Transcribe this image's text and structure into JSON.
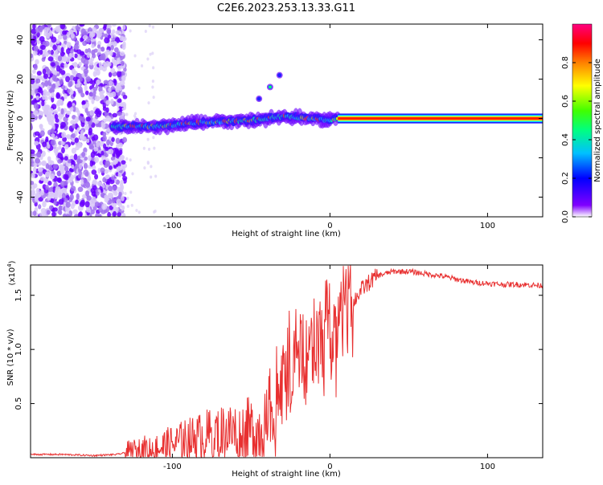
{
  "page_title": "C2E6.2023.253.13.33.G11",
  "chart_data": [
    {
      "id": "spectrogram",
      "type": "heatmap",
      "xlabel": "Height of straight line (km)",
      "ylabel": "Frequency (Hz)",
      "xlim": [
        -190,
        135
      ],
      "ylim": [
        -50,
        48
      ],
      "xticks": [
        -100,
        0,
        100
      ],
      "xtick_labels": [
        "-100",
        "0",
        "100"
      ],
      "yticks": [
        -40,
        -20,
        0,
        20,
        40
      ],
      "ytick_labels": [
        "-40",
        "-20",
        "0",
        "20",
        "40"
      ],
      "colorbar": {
        "label": "Normalized spectral amplitude",
        "range": [
          0,
          1
        ],
        "ticks": [
          0.0,
          0.2,
          0.4,
          0.6,
          0.8
        ],
        "tick_labels": [
          "0.0",
          "0.2",
          "0.4",
          "0.6",
          "0.8"
        ],
        "colormap": [
          "#ffffff",
          "#8000ff",
          "#0000ff",
          "#00c0ff",
          "#00ff80",
          "#40ff00",
          "#ffff00",
          "#ff8000",
          "#ff0000",
          "#ff0080"
        ]
      },
      "signal": {
        "description_points": [
          {
            "x": -138,
            "y": -4
          },
          {
            "x": -110,
            "y": -4
          },
          {
            "x": -80,
            "y": -2
          },
          {
            "x": -50,
            "y": -1
          },
          {
            "x": -30,
            "y": 1
          },
          {
            "x": -10,
            "y": 0
          },
          {
            "x": 0,
            "y": -1
          },
          {
            "x": 5,
            "y": 0
          },
          {
            "x": 135,
            "y": 0
          }
        ],
        "hook_points": [
          {
            "x": -45,
            "y": 10
          },
          {
            "x": -38,
            "y": 16
          },
          {
            "x": -32,
            "y": 22
          }
        ]
      }
    },
    {
      "id": "snr",
      "type": "line",
      "xlabel": "Height of straight line (km)",
      "ylabel": "SNR (10 * v/v)",
      "scale_label": "(x10",
      "scale_exponent": "4",
      "scale_close": ")",
      "xlim": [
        -190,
        135
      ],
      "ylim": [
        0,
        1.78
      ],
      "xticks": [
        -100,
        0,
        100
      ],
      "xtick_labels": [
        "-100",
        "0",
        "100"
      ],
      "yticks": [
        0.5,
        1.0,
        1.5
      ],
      "ytick_labels": [
        "0.5",
        "1.0",
        "1.5"
      ],
      "line_color": "#e83030",
      "series": [
        {
          "x": [
            -190,
            -170,
            -150,
            -135,
            -125,
            -115,
            -105,
            -95,
            -85,
            -75,
            -65,
            -55,
            -45,
            -38,
            -34,
            -30,
            -25,
            -20,
            -15,
            -10,
            -5,
            0,
            5,
            10,
            15,
            20,
            25,
            30,
            35,
            40,
            50,
            60,
            70,
            80,
            90,
            100,
            110,
            120,
            135
          ],
          "values": [
            0.03,
            0.03,
            0.02,
            0.03,
            0.06,
            0.08,
            0.1,
            0.14,
            0.18,
            0.22,
            0.24,
            0.24,
            0.26,
            0.3,
            0.5,
            0.75,
            0.85,
            0.9,
            0.95,
            1.0,
            1.05,
            1.15,
            1.05,
            1.3,
            1.45,
            1.55,
            1.62,
            1.68,
            1.7,
            1.72,
            1.72,
            1.7,
            1.68,
            1.65,
            1.62,
            1.61,
            1.6,
            1.6,
            1.59
          ]
        }
      ]
    }
  ]
}
